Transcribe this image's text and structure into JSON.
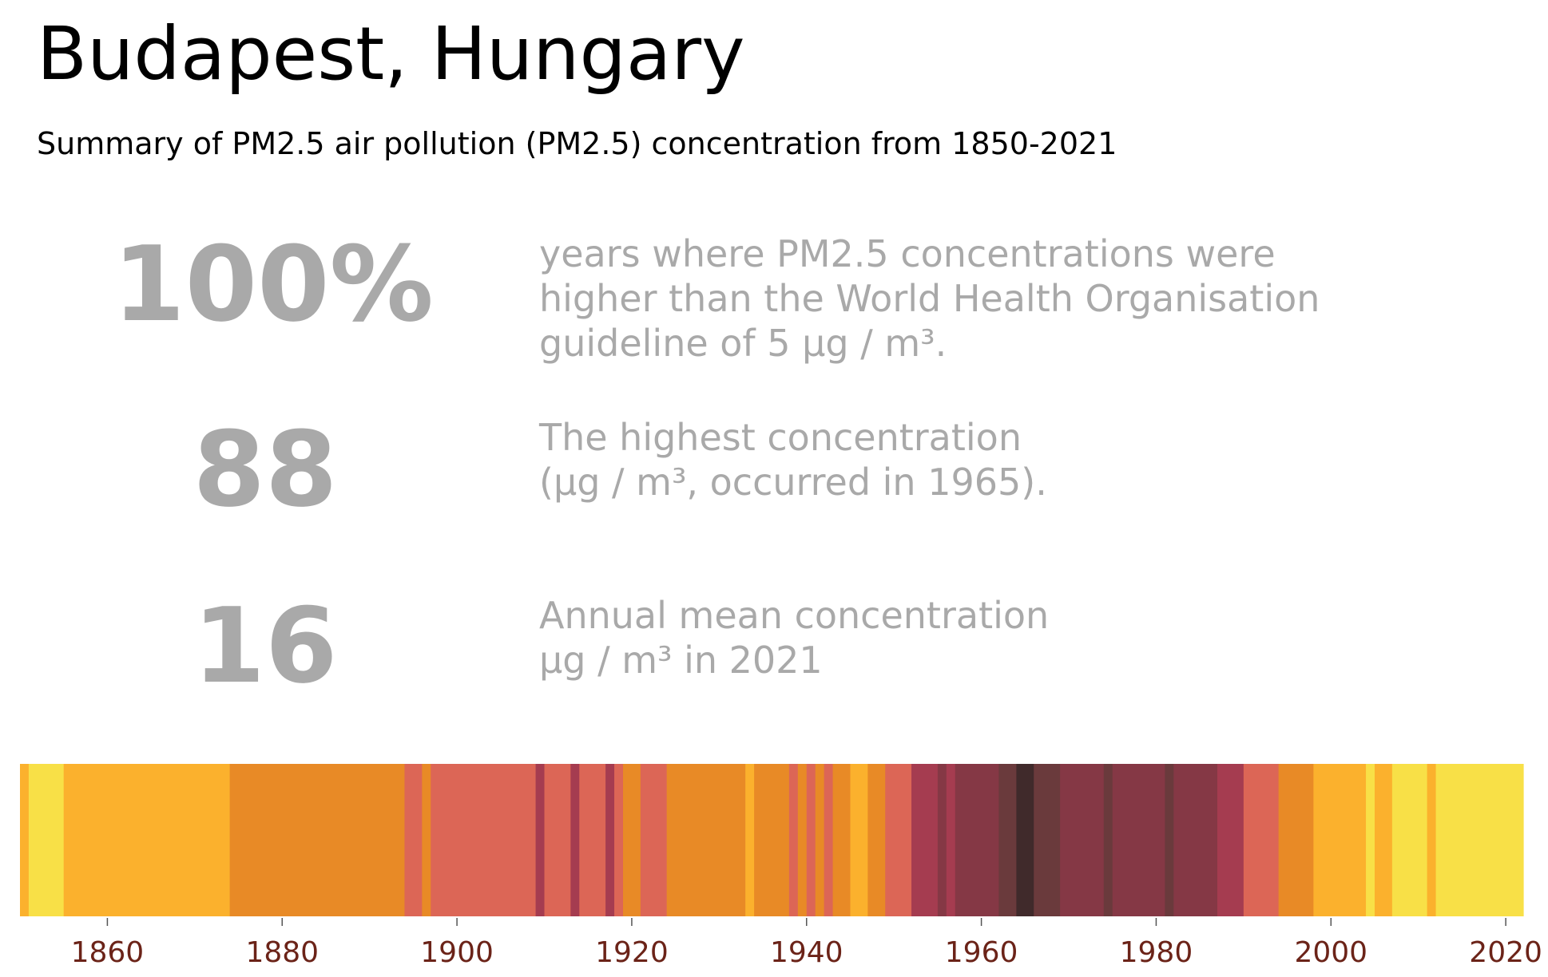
{
  "title": "Budapest, Hungary",
  "subtitle": "Summary of PM2.5 air pollution (PM2.5) concentration from 1850-2021",
  "stats": [
    {
      "value": "100%",
      "lines": [
        "years where PM2.5 concentrations were",
        "higher than the World Health Organisation",
        "guideline of 5 μg / m³."
      ]
    },
    {
      "value": "88",
      "lines": [
        "The highest concentration",
        "(μg / m³, occurred in 1965)."
      ]
    },
    {
      "value": "16",
      "lines": [
        "Annual mean concentration",
        "μg / m³ in 2021"
      ]
    }
  ],
  "colors": {
    "stat_text": "#a9a9a9",
    "tick_label": "#6b2318",
    "palette": [
      "#f8e047",
      "#fbb12d",
      "#e88a26",
      "#dc6656",
      "#a53c50",
      "#853845",
      "#6a3a3c",
      "#402a2b"
    ]
  },
  "chart_data": {
    "type": "heatmap",
    "title": "",
    "xlabel": "",
    "ylabel": "",
    "xlim": [
      1850,
      2022
    ],
    "xticks": [
      1860,
      1880,
      1900,
      1920,
      1940,
      1960,
      1980,
      2000,
      2020
    ],
    "grid": false,
    "legend": "none",
    "color_scale_levels": [
      "yellow",
      "light orange",
      "orange",
      "salmon",
      "crimson",
      "maroon",
      "dark maroon",
      "darkest"
    ],
    "periods": [
      {
        "start": 1850,
        "end": 1851,
        "level": 1
      },
      {
        "start": 1851,
        "end": 1855,
        "level": 0
      },
      {
        "start": 1855,
        "end": 1874,
        "level": 1
      },
      {
        "start": 1874,
        "end": 1894,
        "level": 2
      },
      {
        "start": 1894,
        "end": 1896,
        "level": 3
      },
      {
        "start": 1896,
        "end": 1897,
        "level": 2
      },
      {
        "start": 1897,
        "end": 1909,
        "level": 3
      },
      {
        "start": 1909,
        "end": 1910,
        "level": 4
      },
      {
        "start": 1910,
        "end": 1913,
        "level": 3
      },
      {
        "start": 1913,
        "end": 1914,
        "level": 4
      },
      {
        "start": 1914,
        "end": 1917,
        "level": 3
      },
      {
        "start": 1917,
        "end": 1918,
        "level": 4
      },
      {
        "start": 1918,
        "end": 1919,
        "level": 3
      },
      {
        "start": 1919,
        "end": 1921,
        "level": 2
      },
      {
        "start": 1921,
        "end": 1924,
        "level": 3
      },
      {
        "start": 1924,
        "end": 1933,
        "level": 2
      },
      {
        "start": 1933,
        "end": 1934,
        "level": 1
      },
      {
        "start": 1934,
        "end": 1938,
        "level": 2
      },
      {
        "start": 1938,
        "end": 1939,
        "level": 3
      },
      {
        "start": 1939,
        "end": 1940,
        "level": 2
      },
      {
        "start": 1940,
        "end": 1941,
        "level": 3
      },
      {
        "start": 1941,
        "end": 1942,
        "level": 2
      },
      {
        "start": 1942,
        "end": 1943,
        "level": 3
      },
      {
        "start": 1943,
        "end": 1945,
        "level": 2
      },
      {
        "start": 1945,
        "end": 1947,
        "level": 1
      },
      {
        "start": 1947,
        "end": 1949,
        "level": 2
      },
      {
        "start": 1949,
        "end": 1952,
        "level": 3
      },
      {
        "start": 1952,
        "end": 1955,
        "level": 4
      },
      {
        "start": 1955,
        "end": 1956,
        "level": 5
      },
      {
        "start": 1956,
        "end": 1957,
        "level": 4
      },
      {
        "start": 1957,
        "end": 1962,
        "level": 5
      },
      {
        "start": 1962,
        "end": 1964,
        "level": 6
      },
      {
        "start": 1964,
        "end": 1966,
        "level": 7
      },
      {
        "start": 1966,
        "end": 1969,
        "level": 6
      },
      {
        "start": 1969,
        "end": 1974,
        "level": 5
      },
      {
        "start": 1974,
        "end": 1975,
        "level": 6
      },
      {
        "start": 1975,
        "end": 1981,
        "level": 5
      },
      {
        "start": 1981,
        "end": 1982,
        "level": 6
      },
      {
        "start": 1982,
        "end": 1987,
        "level": 5
      },
      {
        "start": 1987,
        "end": 1990,
        "level": 4
      },
      {
        "start": 1990,
        "end": 1994,
        "level": 3
      },
      {
        "start": 1994,
        "end": 1998,
        "level": 2
      },
      {
        "start": 1998,
        "end": 2004,
        "level": 1
      },
      {
        "start": 2004,
        "end": 2005,
        "level": 0
      },
      {
        "start": 2005,
        "end": 2007,
        "level": 1
      },
      {
        "start": 2007,
        "end": 2011,
        "level": 0
      },
      {
        "start": 2011,
        "end": 2012,
        "level": 1
      },
      {
        "start": 2012,
        "end": 2022,
        "level": 0
      }
    ]
  }
}
